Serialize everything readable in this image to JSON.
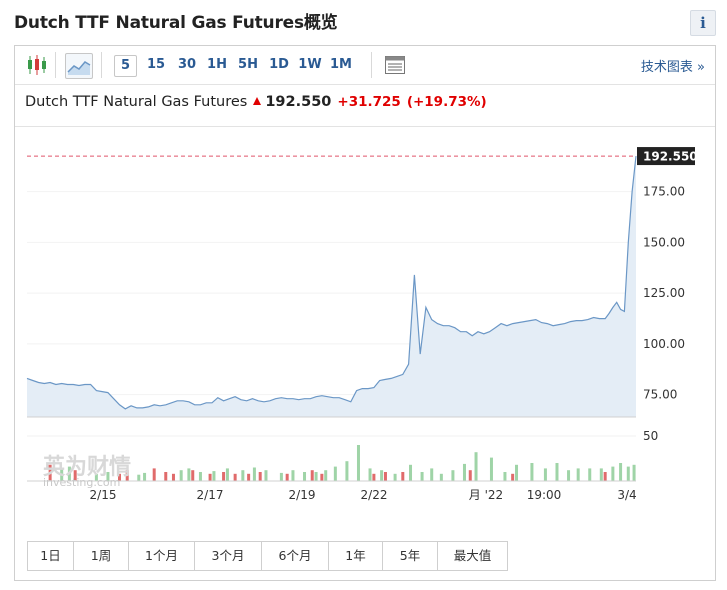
{
  "page": {
    "title": "Dutch TTF Natural Gas Futures概览",
    "info_label": "i"
  },
  "toolbar": {
    "intervals": [
      "5",
      "15",
      "30",
      "1H",
      "5H",
      "1D",
      "1W",
      "1M"
    ],
    "active_interval": "5",
    "tech_chart_label": "技术图表 »"
  },
  "quote": {
    "name": "Dutch TTF Natural Gas Futures",
    "price": "192.550",
    "change": "+31.725",
    "change_pct": "(+19.73%)",
    "direction": "up"
  },
  "watermark": {
    "cn": "英为财情",
    "en": "investing.com"
  },
  "range_buttons": [
    "1日",
    "1周",
    "1个月",
    "3个月",
    "6个月",
    "1年",
    "5年",
    "最大值"
  ],
  "colors": {
    "line": "#6b97c6",
    "area": "#e4edf6",
    "up_volume": "#9fd4a7",
    "down_volume": "#e06b6b",
    "last_price_tag": "#222222",
    "last_price_line": "#e0556b",
    "accent": "#2a5a93"
  },
  "chart_data": {
    "type": "area",
    "last_price_label": "192.550",
    "last_price": 192.55,
    "price_axis": {
      "ylim": [
        64,
        198
      ],
      "ticks": [
        75,
        100,
        125,
        150,
        175
      ],
      "tick_labels": [
        "75.00",
        "100.00",
        "125.00",
        "150.00",
        "175.00"
      ]
    },
    "volume_axis": {
      "ylim": [
        0,
        70
      ],
      "ticks": [
        50
      ],
      "tick_labels": [
        "50"
      ]
    },
    "x_tick_labels": [
      "2/15",
      "2/17",
      "2/19",
      "2/22",
      "月 '22",
      "19:00",
      "3/4"
    ],
    "price": {
      "x": [
        0,
        3,
        6,
        9,
        12,
        15,
        18,
        21,
        24,
        27,
        30,
        33,
        36,
        39,
        42,
        45,
        48,
        51,
        54,
        57,
        60,
        63,
        66,
        69,
        72,
        75,
        78,
        81,
        84,
        87,
        90,
        93,
        96,
        99,
        102,
        105,
        108,
        111,
        114,
        117,
        120,
        123,
        126,
        129,
        132,
        135,
        138,
        141,
        144,
        147,
        150,
        153,
        156,
        159,
        162,
        165,
        168,
        171,
        174,
        177,
        180,
        183,
        186,
        189,
        192,
        195,
        198,
        201,
        204,
        207,
        210,
        213,
        216,
        219,
        222,
        225,
        228,
        231,
        234,
        237,
        240,
        243,
        246,
        249,
        252,
        255,
        258,
        261,
        264,
        267,
        270,
        273,
        276,
        279,
        282,
        285,
        288,
        291,
        294,
        297,
        300
      ],
      "y": [
        83,
        82,
        81,
        80.5,
        81,
        80,
        80.5,
        80,
        80,
        79.5,
        80,
        80,
        77,
        76.5,
        76,
        73,
        70,
        68,
        69.5,
        68.5,
        68.5,
        69,
        70,
        69.5,
        70,
        71,
        72,
        72,
        71.5,
        70,
        70,
        71,
        71,
        73.5,
        72,
        73,
        74,
        72.5,
        72,
        73,
        72,
        71.5,
        72,
        73,
        73.5,
        73,
        73,
        72.5,
        73,
        73,
        74,
        74.5,
        74,
        73.5,
        73.5,
        72.5,
        71.5,
        77,
        78,
        78,
        78.5,
        82,
        82.5,
        83,
        84,
        85,
        90,
        134,
        95,
        118,
        112,
        110,
        109,
        109,
        108,
        106,
        106,
        104,
        106,
        105,
        106,
        108,
        110,
        109,
        110,
        110.5,
        111,
        111.5,
        112,
        110.5,
        110,
        109,
        109.5,
        110,
        111,
        111.5,
        111.5,
        112,
        113,
        112.5,
        112.5
      ]
    },
    "price_tail": {
      "x": [
        300,
        302,
        304,
        306,
        308,
        310
      ],
      "y": [
        112.5,
        115,
        118,
        120.5,
        117,
        116
      ]
    },
    "price_spike": {
      "x": [
        310,
        312,
        314,
        316
      ],
      "y": [
        116,
        150,
        175,
        192.55
      ]
    },
    "volume": {
      "up_x": [
        18,
        22,
        36,
        42,
        58,
        61,
        80,
        84,
        90,
        97,
        104,
        112,
        118,
        124,
        132,
        138,
        144,
        150,
        155,
        160,
        166,
        172,
        178,
        184,
        191,
        199,
        205,
        210,
        215,
        221,
        227,
        233,
        241,
        248,
        254,
        262,
        269,
        275,
        281,
        286,
        292,
        298,
        304,
        308,
        312,
        315
      ],
      "up_y": [
        14,
        16,
        8,
        10,
        7,
        9,
        12,
        14,
        10,
        11,
        14,
        12,
        15,
        12,
        9,
        12,
        10,
        10,
        12,
        16,
        22,
        40,
        14,
        12,
        8,
        18,
        10,
        14,
        8,
        12,
        19,
        32,
        26,
        10,
        18,
        20,
        14,
        20,
        12,
        14,
        14,
        14,
        16,
        20,
        16,
        18
      ],
      "down_x": [
        12,
        25,
        48,
        52,
        66,
        72,
        76,
        86,
        95,
        102,
        108,
        115,
        121,
        135,
        148,
        153,
        180,
        186,
        195,
        230,
        252,
        300
      ],
      "down_y": [
        18,
        12,
        8,
        12,
        14,
        10,
        8,
        12,
        8,
        10,
        8,
        8,
        10,
        8,
        12,
        8,
        8,
        10,
        10,
        12,
        8,
        10
      ]
    }
  }
}
